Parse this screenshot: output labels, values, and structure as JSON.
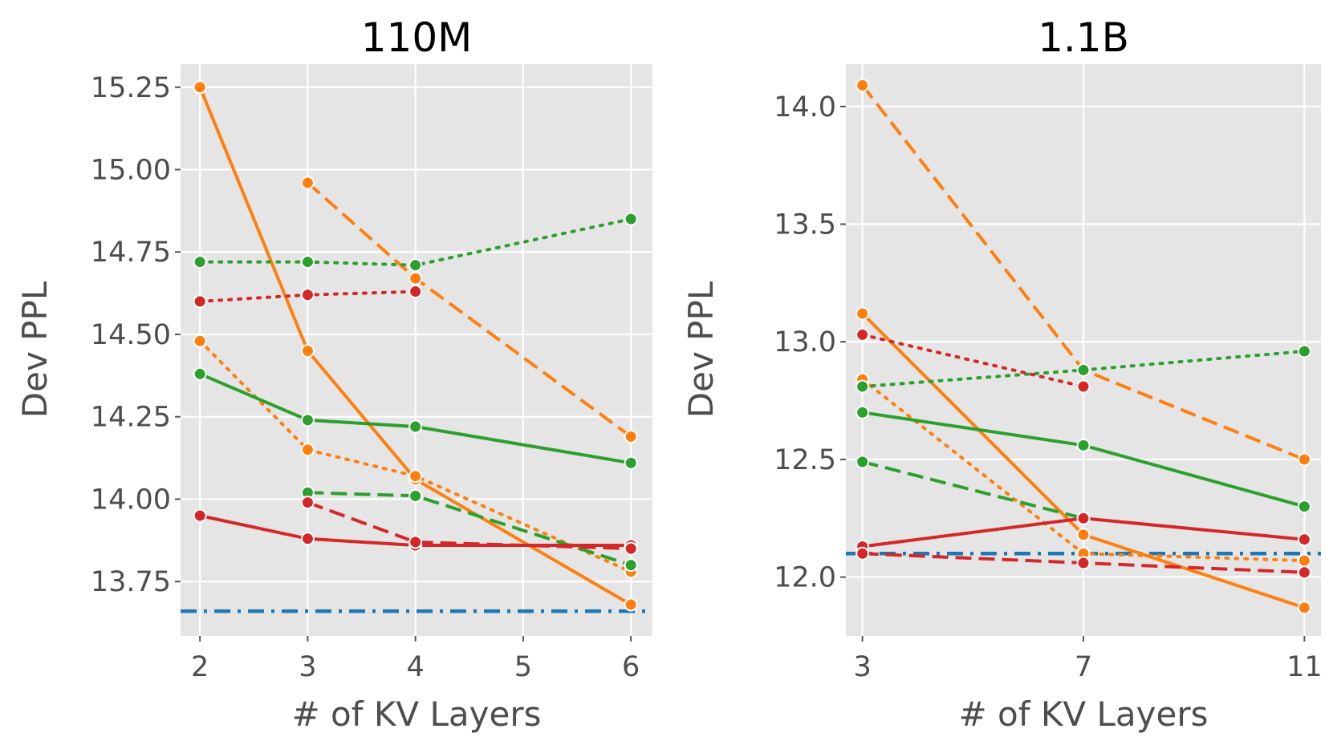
{
  "chart_data": [
    {
      "type": "line",
      "title": "110M",
      "xlabel": "# of KV Layers",
      "ylabel": "Dev PPL",
      "xlim": [
        1.82,
        6.2
      ],
      "ylim": [
        13.585,
        15.32
      ],
      "x_ticks": [
        2,
        3,
        4,
        5,
        6
      ],
      "x_tick_labels": [
        "2",
        "3",
        "4",
        "5",
        "6"
      ],
      "y_ticks": [
        13.75,
        14.0,
        14.25,
        14.5,
        14.75,
        15.0,
        15.25
      ],
      "y_tick_labels": [
        "13.75",
        "14.00",
        "14.25",
        "14.50",
        "14.75",
        "15.00",
        "15.25"
      ],
      "grid": true,
      "baseline": {
        "y": 13.66,
        "color": "#1f77b4",
        "style": "dashdot"
      },
      "series": [
        {
          "name": "orange-solid",
          "color": "#ff7f0e",
          "style": "solid",
          "x": [
            2,
            3,
            4,
            6
          ],
          "y": [
            15.25,
            14.45,
            14.06,
            13.68
          ]
        },
        {
          "name": "orange-dashed",
          "color": "#ff7f0e",
          "style": "dashed",
          "x": [
            3,
            4,
            6
          ],
          "y": [
            14.96,
            14.67,
            14.19
          ]
        },
        {
          "name": "orange-dotted",
          "color": "#ff7f0e",
          "style": "dotted",
          "x": [
            2,
            3,
            4,
            6
          ],
          "y": [
            14.48,
            14.15,
            14.07,
            13.78
          ]
        },
        {
          "name": "green-solid",
          "color": "#2ca02c",
          "style": "solid",
          "x": [
            2,
            3,
            4,
            6
          ],
          "y": [
            14.38,
            14.24,
            14.22,
            14.11
          ]
        },
        {
          "name": "green-dashed",
          "color": "#2ca02c",
          "style": "dashed",
          "x": [
            3,
            4,
            6
          ],
          "y": [
            14.02,
            14.01,
            13.8
          ]
        },
        {
          "name": "green-dotted",
          "color": "#2ca02c",
          "style": "dotted",
          "x": [
            2,
            3,
            4,
            6
          ],
          "y": [
            14.72,
            14.72,
            14.71,
            14.85
          ]
        },
        {
          "name": "red-solid",
          "color": "#d62728",
          "style": "solid",
          "x": [
            2,
            3,
            4,
            6
          ],
          "y": [
            13.95,
            13.88,
            13.86,
            13.86
          ]
        },
        {
          "name": "red-dashed",
          "color": "#d62728",
          "style": "dashed",
          "x": [
            3,
            4,
            6
          ],
          "y": [
            13.99,
            13.87,
            13.85
          ]
        },
        {
          "name": "red-dotted",
          "color": "#d62728",
          "style": "dotted",
          "x": [
            2,
            3,
            4
          ],
          "y": [
            14.6,
            14.62,
            14.63
          ]
        }
      ]
    },
    {
      "type": "line",
      "title": "1.1B",
      "xlabel": "# of KV Layers",
      "ylabel": "Dev PPL",
      "xlim": [
        2.7,
        11.3
      ],
      "ylim": [
        11.75,
        14.18
      ],
      "x_ticks": [
        3,
        7,
        11
      ],
      "x_tick_labels": [
        "3",
        "7",
        "11"
      ],
      "y_ticks": [
        12.0,
        12.5,
        13.0,
        13.5,
        14.0
      ],
      "y_tick_labels": [
        "12.0",
        "12.5",
        "13.0",
        "13.5",
        "14.0"
      ],
      "grid": true,
      "baseline": {
        "y": 12.1,
        "color": "#1f77b4",
        "style": "dashdot"
      },
      "series": [
        {
          "name": "orange-solid",
          "color": "#ff7f0e",
          "style": "solid",
          "x": [
            3,
            7,
            11
          ],
          "y": [
            13.12,
            12.18,
            11.87
          ]
        },
        {
          "name": "orange-dashed",
          "color": "#ff7f0e",
          "style": "dashed",
          "x": [
            3,
            7,
            11
          ],
          "y": [
            14.09,
            12.88,
            12.5
          ]
        },
        {
          "name": "orange-dotted",
          "color": "#ff7f0e",
          "style": "dotted",
          "x": [
            3,
            7,
            11
          ],
          "y": [
            12.84,
            12.1,
            12.07
          ]
        },
        {
          "name": "green-solid",
          "color": "#2ca02c",
          "style": "solid",
          "x": [
            3,
            7,
            11
          ],
          "y": [
            12.7,
            12.56,
            12.3
          ]
        },
        {
          "name": "green-dashed",
          "color": "#2ca02c",
          "style": "dashed",
          "x": [
            3,
            7
          ],
          "y": [
            12.49,
            12.25
          ]
        },
        {
          "name": "green-dotted",
          "color": "#2ca02c",
          "style": "dotted",
          "x": [
            3,
            7,
            11
          ],
          "y": [
            12.81,
            12.88,
            12.96
          ]
        },
        {
          "name": "red-solid",
          "color": "#d62728",
          "style": "solid",
          "x": [
            3,
            7,
            11
          ],
          "y": [
            12.13,
            12.25,
            12.16
          ]
        },
        {
          "name": "red-dashed",
          "color": "#d62728",
          "style": "dashed",
          "x": [
            3,
            7,
            11
          ],
          "y": [
            12.1,
            12.06,
            12.02
          ]
        },
        {
          "name": "red-dotted",
          "color": "#d62728",
          "style": "dotted",
          "x": [
            3,
            7
          ],
          "y": [
            13.03,
            12.81
          ]
        }
      ]
    }
  ]
}
